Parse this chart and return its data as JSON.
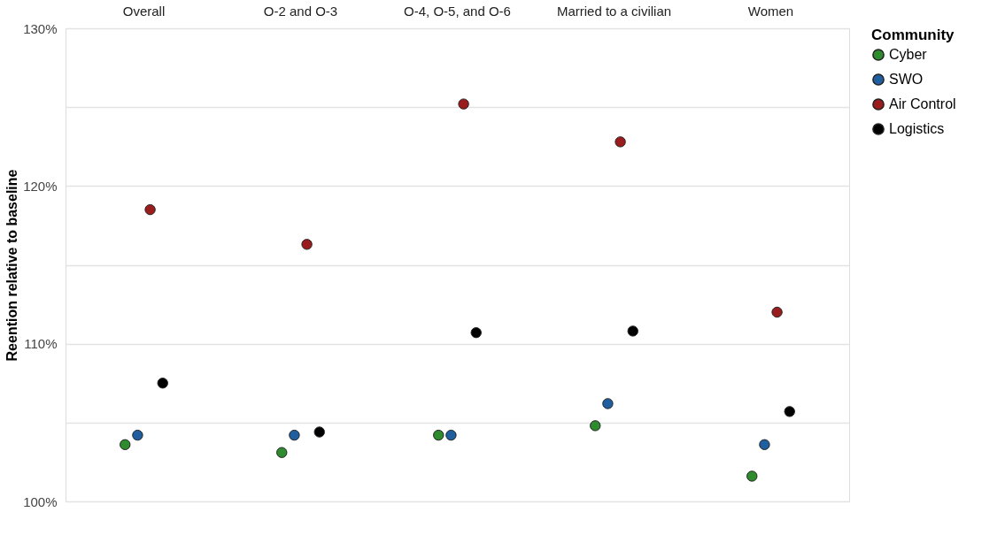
{
  "chart_data": {
    "type": "scatter",
    "ylabel": "Reention relative to baseline",
    "legend_title": "Community",
    "categories": [
      "Overall",
      "O-2 and O-3",
      "O-4, O-5, and O-6",
      "Married to a civilian",
      "Women"
    ],
    "ylim": [
      100,
      130
    ],
    "yticks": [
      {
        "value": 100,
        "label": "100%"
      },
      {
        "value": 105,
        "label": null
      },
      {
        "value": 110,
        "label": "110%"
      },
      {
        "value": 115,
        "label": null
      },
      {
        "value": 120,
        "label": "120%"
      },
      {
        "value": 125,
        "label": null
      },
      {
        "value": 130,
        "label": "130%"
      }
    ],
    "grid": "y",
    "marker": "circle",
    "legend": "right",
    "series": [
      {
        "name": "Cyber",
        "color": "#2e8b2e",
        "values": [
          103.6,
          103.1,
          104.2,
          104.8,
          101.6
        ]
      },
      {
        "name": "SWO",
        "color": "#1f5fa0",
        "values": [
          104.2,
          104.2,
          104.2,
          106.2,
          103.6
        ]
      },
      {
        "name": "Air Control",
        "color": "#9b1c1c",
        "values": [
          118.5,
          116.3,
          125.2,
          122.8,
          112.0
        ]
      },
      {
        "name": "Logistics",
        "color": "#000000",
        "values": [
          107.5,
          104.4,
          110.7,
          110.8,
          105.7
        ]
      }
    ]
  }
}
